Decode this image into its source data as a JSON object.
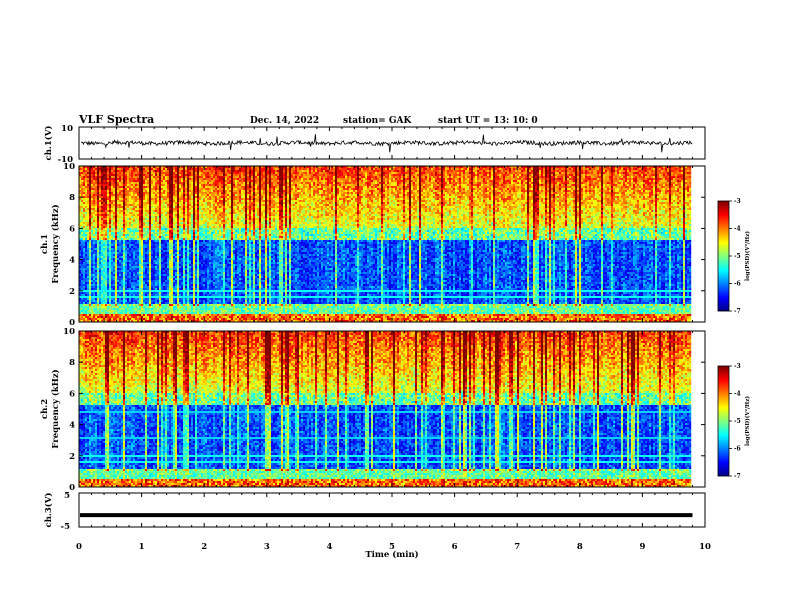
{
  "header": {
    "title": "VLF Spectra",
    "date": "Dec. 14, 2022",
    "station": "station= GAK",
    "start": "start  UT  =   13: 10: 0"
  },
  "chart_data": [
    {
      "type": "line",
      "id": "ch1-waveform",
      "ylabel": "ch.1(V)",
      "ylim": [
        -10,
        10
      ],
      "yticks": [
        "10",
        "-10"
      ],
      "xlim": [
        0,
        10
      ],
      "x_unit": "min",
      "series": [
        {
          "description_values": "approx. noise band centered near 0 V with amplitude about ±2 V and occasional spikes",
          "baseline": 0,
          "amplitude": 2
        }
      ]
    },
    {
      "type": "heatmap",
      "id": "ch1-spectrogram",
      "ylabel": "ch.1\nFrequency (kHz)",
      "ylabel_line1": "ch.1",
      "ylabel_line2": "Frequency (kHz)",
      "ylim": [
        0,
        10
      ],
      "yticks": [
        "0",
        "2",
        "4",
        "6",
        "8",
        "10"
      ],
      "xlim": [
        0,
        10
      ],
      "colorbar": {
        "label": "log(PSD)(V²/Hz)",
        "range": [
          -7,
          -3
        ],
        "ticks": [
          "-3",
          "-4",
          "-5",
          "-6",
          "-7"
        ]
      },
      "data_end_min": 9.8
    },
    {
      "type": "heatmap",
      "id": "ch2-spectrogram",
      "ylabel": "ch.2\nFrequency (kHz)",
      "ylabel_line1": "ch.2",
      "ylabel_line2": "Frequency (kHz)",
      "ylim": [
        0,
        10
      ],
      "yticks": [
        "0",
        "2",
        "4",
        "6",
        "8",
        "10"
      ],
      "xlim": [
        0,
        10
      ],
      "colorbar": {
        "label": "log(PSD)(V²/Hz)",
        "range": [
          -7,
          -3
        ],
        "ticks": [
          "-3",
          "-4",
          "-5",
          "-6",
          "-7"
        ]
      },
      "data_end_min": 9.8
    },
    {
      "type": "line",
      "id": "ch3-waveform",
      "ylabel": "ch.3(V)",
      "ylim": [
        -5,
        5
      ],
      "yticks": [
        "5",
        "-5"
      ],
      "xlim": [
        0,
        10
      ],
      "series": [
        {
          "constant": -1.5
        }
      ]
    }
  ],
  "xaxis": {
    "label": "Time  (min)",
    "ticks": [
      "0",
      "1",
      "2",
      "3",
      "4",
      "5",
      "6",
      "7",
      "8",
      "9",
      "10"
    ]
  },
  "colors": {
    "axis": "#000000",
    "background": "#ffffff"
  }
}
